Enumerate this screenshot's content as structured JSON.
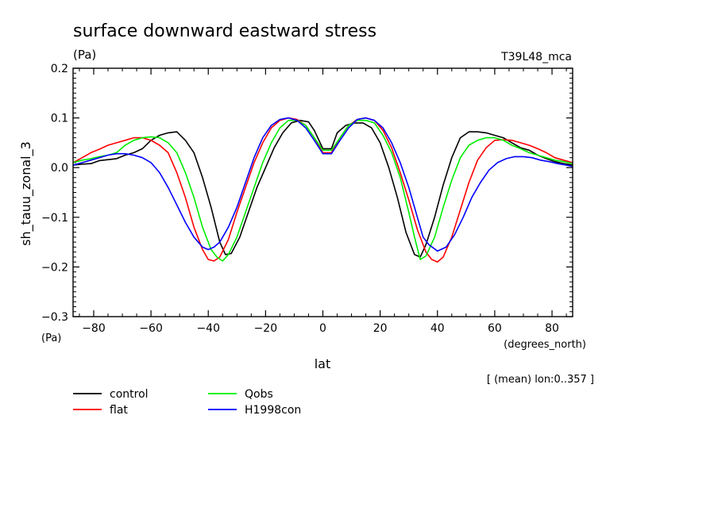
{
  "chart_data": {
    "type": "line",
    "title": "surface downward eastward stress",
    "title_units": "(Pa)",
    "experiment_label": "T39L48_mca",
    "ylabel": "sh_tauu_zonal_3",
    "yunits": "(Pa)",
    "xlabel": "lat",
    "xunits": "(degrees_north)",
    "subset_note": "[ (mean) lon:0..357 ]",
    "xlim": [
      -87.2,
      87.2
    ],
    "ylim": [
      -0.3,
      0.2
    ],
    "xticks": [
      -80,
      -60,
      -40,
      -20,
      0,
      20,
      40,
      60,
      80
    ],
    "xtick_labels": [
      "−80",
      "−60",
      "−40",
      "−20",
      "0",
      "20",
      "40",
      "60",
      "80"
    ],
    "yticks": [
      -0.3,
      -0.2,
      -0.1,
      0.0,
      0.1,
      0.2
    ],
    "ytick_labels": [
      "−0.3",
      "−0.2",
      "−0.1",
      "0.0",
      "0.1",
      "0.2"
    ],
    "grid": false,
    "legend_position": "bottom-left",
    "series": [
      {
        "name": "control",
        "color": "#000000",
        "x": [
          -87.2,
          -84,
          -81,
          -78,
          -75,
          -72,
          -69,
          -66,
          -63,
          -60,
          -57,
          -54,
          -51,
          -48,
          -45,
          -42,
          -39,
          -36,
          -34,
          -32,
          -29,
          -26,
          -23,
          -20,
          -17,
          -14,
          -11,
          -8,
          -5,
          -3,
          0,
          3,
          5,
          8,
          11,
          14,
          17,
          20,
          23,
          26,
          29,
          32,
          34,
          36,
          39,
          42,
          45,
          48,
          51,
          54,
          57,
          60,
          63,
          66,
          69,
          72,
          75,
          78,
          81,
          84,
          87.2
        ],
        "y": [
          0.005,
          0.007,
          0.008,
          0.014,
          0.016,
          0.018,
          0.025,
          0.03,
          0.038,
          0.055,
          0.065,
          0.07,
          0.072,
          0.055,
          0.03,
          -0.02,
          -0.08,
          -0.15,
          -0.175,
          -0.173,
          -0.14,
          -0.09,
          -0.04,
          0.0,
          0.04,
          0.07,
          0.09,
          0.095,
          0.092,
          0.075,
          0.038,
          0.038,
          0.07,
          0.085,
          0.09,
          0.09,
          0.08,
          0.05,
          0.0,
          -0.06,
          -0.13,
          -0.175,
          -0.18,
          -0.155,
          -0.1,
          -0.035,
          0.02,
          0.06,
          0.072,
          0.072,
          0.07,
          0.065,
          0.06,
          0.05,
          0.04,
          0.035,
          0.025,
          0.018,
          0.012,
          0.008,
          0.005
        ]
      },
      {
        "name": "flat",
        "color": "#ff0000",
        "x": [
          -87.2,
          -84,
          -81,
          -78,
          -75,
          -72,
          -69,
          -66,
          -63,
          -60,
          -57,
          -54,
          -51,
          -48,
          -45,
          -42,
          -40,
          -38,
          -36,
          -33,
          -30,
          -27,
          -24,
          -21,
          -18,
          -15,
          -12,
          -9,
          -6,
          -3,
          0,
          3,
          6,
          9,
          12,
          15,
          18,
          21,
          24,
          27,
          30,
          33,
          36,
          38,
          40,
          42,
          45,
          48,
          51,
          54,
          57,
          60,
          63,
          66,
          69,
          72,
          75,
          78,
          81,
          84,
          87.2
        ],
        "y": [
          0.01,
          0.02,
          0.03,
          0.037,
          0.045,
          0.05,
          0.055,
          0.06,
          0.06,
          0.055,
          0.045,
          0.03,
          -0.01,
          -0.06,
          -0.12,
          -0.165,
          -0.185,
          -0.188,
          -0.18,
          -0.145,
          -0.09,
          -0.04,
          0.01,
          0.05,
          0.08,
          0.095,
          0.1,
          0.097,
          0.085,
          0.06,
          0.03,
          0.03,
          0.06,
          0.085,
          0.097,
          0.1,
          0.095,
          0.075,
          0.04,
          -0.01,
          -0.065,
          -0.125,
          -0.17,
          -0.185,
          -0.19,
          -0.18,
          -0.14,
          -0.085,
          -0.03,
          0.015,
          0.04,
          0.055,
          0.056,
          0.055,
          0.05,
          0.045,
          0.038,
          0.03,
          0.02,
          0.015,
          0.01
        ]
      },
      {
        "name": "Qobs",
        "color": "#00ee00",
        "x": [
          -87.2,
          -84,
          -81,
          -78,
          -75,
          -72,
          -69,
          -66,
          -63,
          -60,
          -57,
          -54,
          -51,
          -48,
          -45,
          -42,
          -39,
          -37,
          -35,
          -33,
          -30,
          -27,
          -24,
          -21,
          -18,
          -15,
          -12,
          -9,
          -6,
          -3,
          0,
          3,
          6,
          9,
          12,
          15,
          18,
          21,
          24,
          27,
          30,
          32,
          34,
          36,
          39,
          42,
          45,
          48,
          51,
          54,
          57,
          60,
          63,
          66,
          69,
          72,
          75,
          78,
          81,
          84,
          87.2
        ],
        "y": [
          0.01,
          0.015,
          0.018,
          0.022,
          0.025,
          0.03,
          0.045,
          0.055,
          0.06,
          0.062,
          0.06,
          0.05,
          0.03,
          -0.01,
          -0.06,
          -0.12,
          -0.165,
          -0.18,
          -0.188,
          -0.175,
          -0.14,
          -0.09,
          -0.04,
          0.01,
          0.05,
          0.08,
          0.095,
          0.095,
          0.085,
          0.06,
          0.035,
          0.035,
          0.06,
          0.085,
          0.095,
          0.095,
          0.09,
          0.065,
          0.03,
          -0.02,
          -0.09,
          -0.14,
          -0.185,
          -0.178,
          -0.14,
          -0.08,
          -0.025,
          0.02,
          0.045,
          0.055,
          0.06,
          0.06,
          0.055,
          0.045,
          0.038,
          0.03,
          0.025,
          0.02,
          0.015,
          0.012,
          0.008
        ]
      },
      {
        "name": "H1998con",
        "color": "#0000ff",
        "x": [
          -87.2,
          -84,
          -81,
          -78,
          -75,
          -72,
          -69,
          -66,
          -63,
          -60,
          -57,
          -54,
          -51,
          -48,
          -45,
          -42,
          -40,
          -38,
          -36,
          -33,
          -30,
          -27,
          -24,
          -21,
          -18,
          -15,
          -12,
          -9,
          -6,
          -3,
          0,
          3,
          6,
          9,
          12,
          15,
          18,
          21,
          24,
          27,
          30,
          33,
          35,
          37,
          40,
          43,
          46,
          49,
          52,
          55,
          58,
          61,
          64,
          67,
          70,
          73,
          76,
          79,
          82,
          85,
          87.2
        ],
        "y": [
          0.005,
          0.01,
          0.015,
          0.02,
          0.025,
          0.028,
          0.028,
          0.025,
          0.02,
          0.01,
          -0.01,
          -0.04,
          -0.075,
          -0.11,
          -0.14,
          -0.16,
          -0.165,
          -0.16,
          -0.15,
          -0.12,
          -0.08,
          -0.03,
          0.02,
          0.06,
          0.085,
          0.097,
          0.1,
          0.095,
          0.08,
          0.055,
          0.028,
          0.028,
          0.055,
          0.08,
          0.097,
          0.1,
          0.095,
          0.08,
          0.05,
          0.01,
          -0.04,
          -0.1,
          -0.14,
          -0.155,
          -0.168,
          -0.16,
          -0.135,
          -0.1,
          -0.06,
          -0.03,
          -0.005,
          0.01,
          0.018,
          0.022,
          0.022,
          0.02,
          0.015,
          0.012,
          0.008,
          0.005,
          0.002
        ]
      }
    ]
  }
}
